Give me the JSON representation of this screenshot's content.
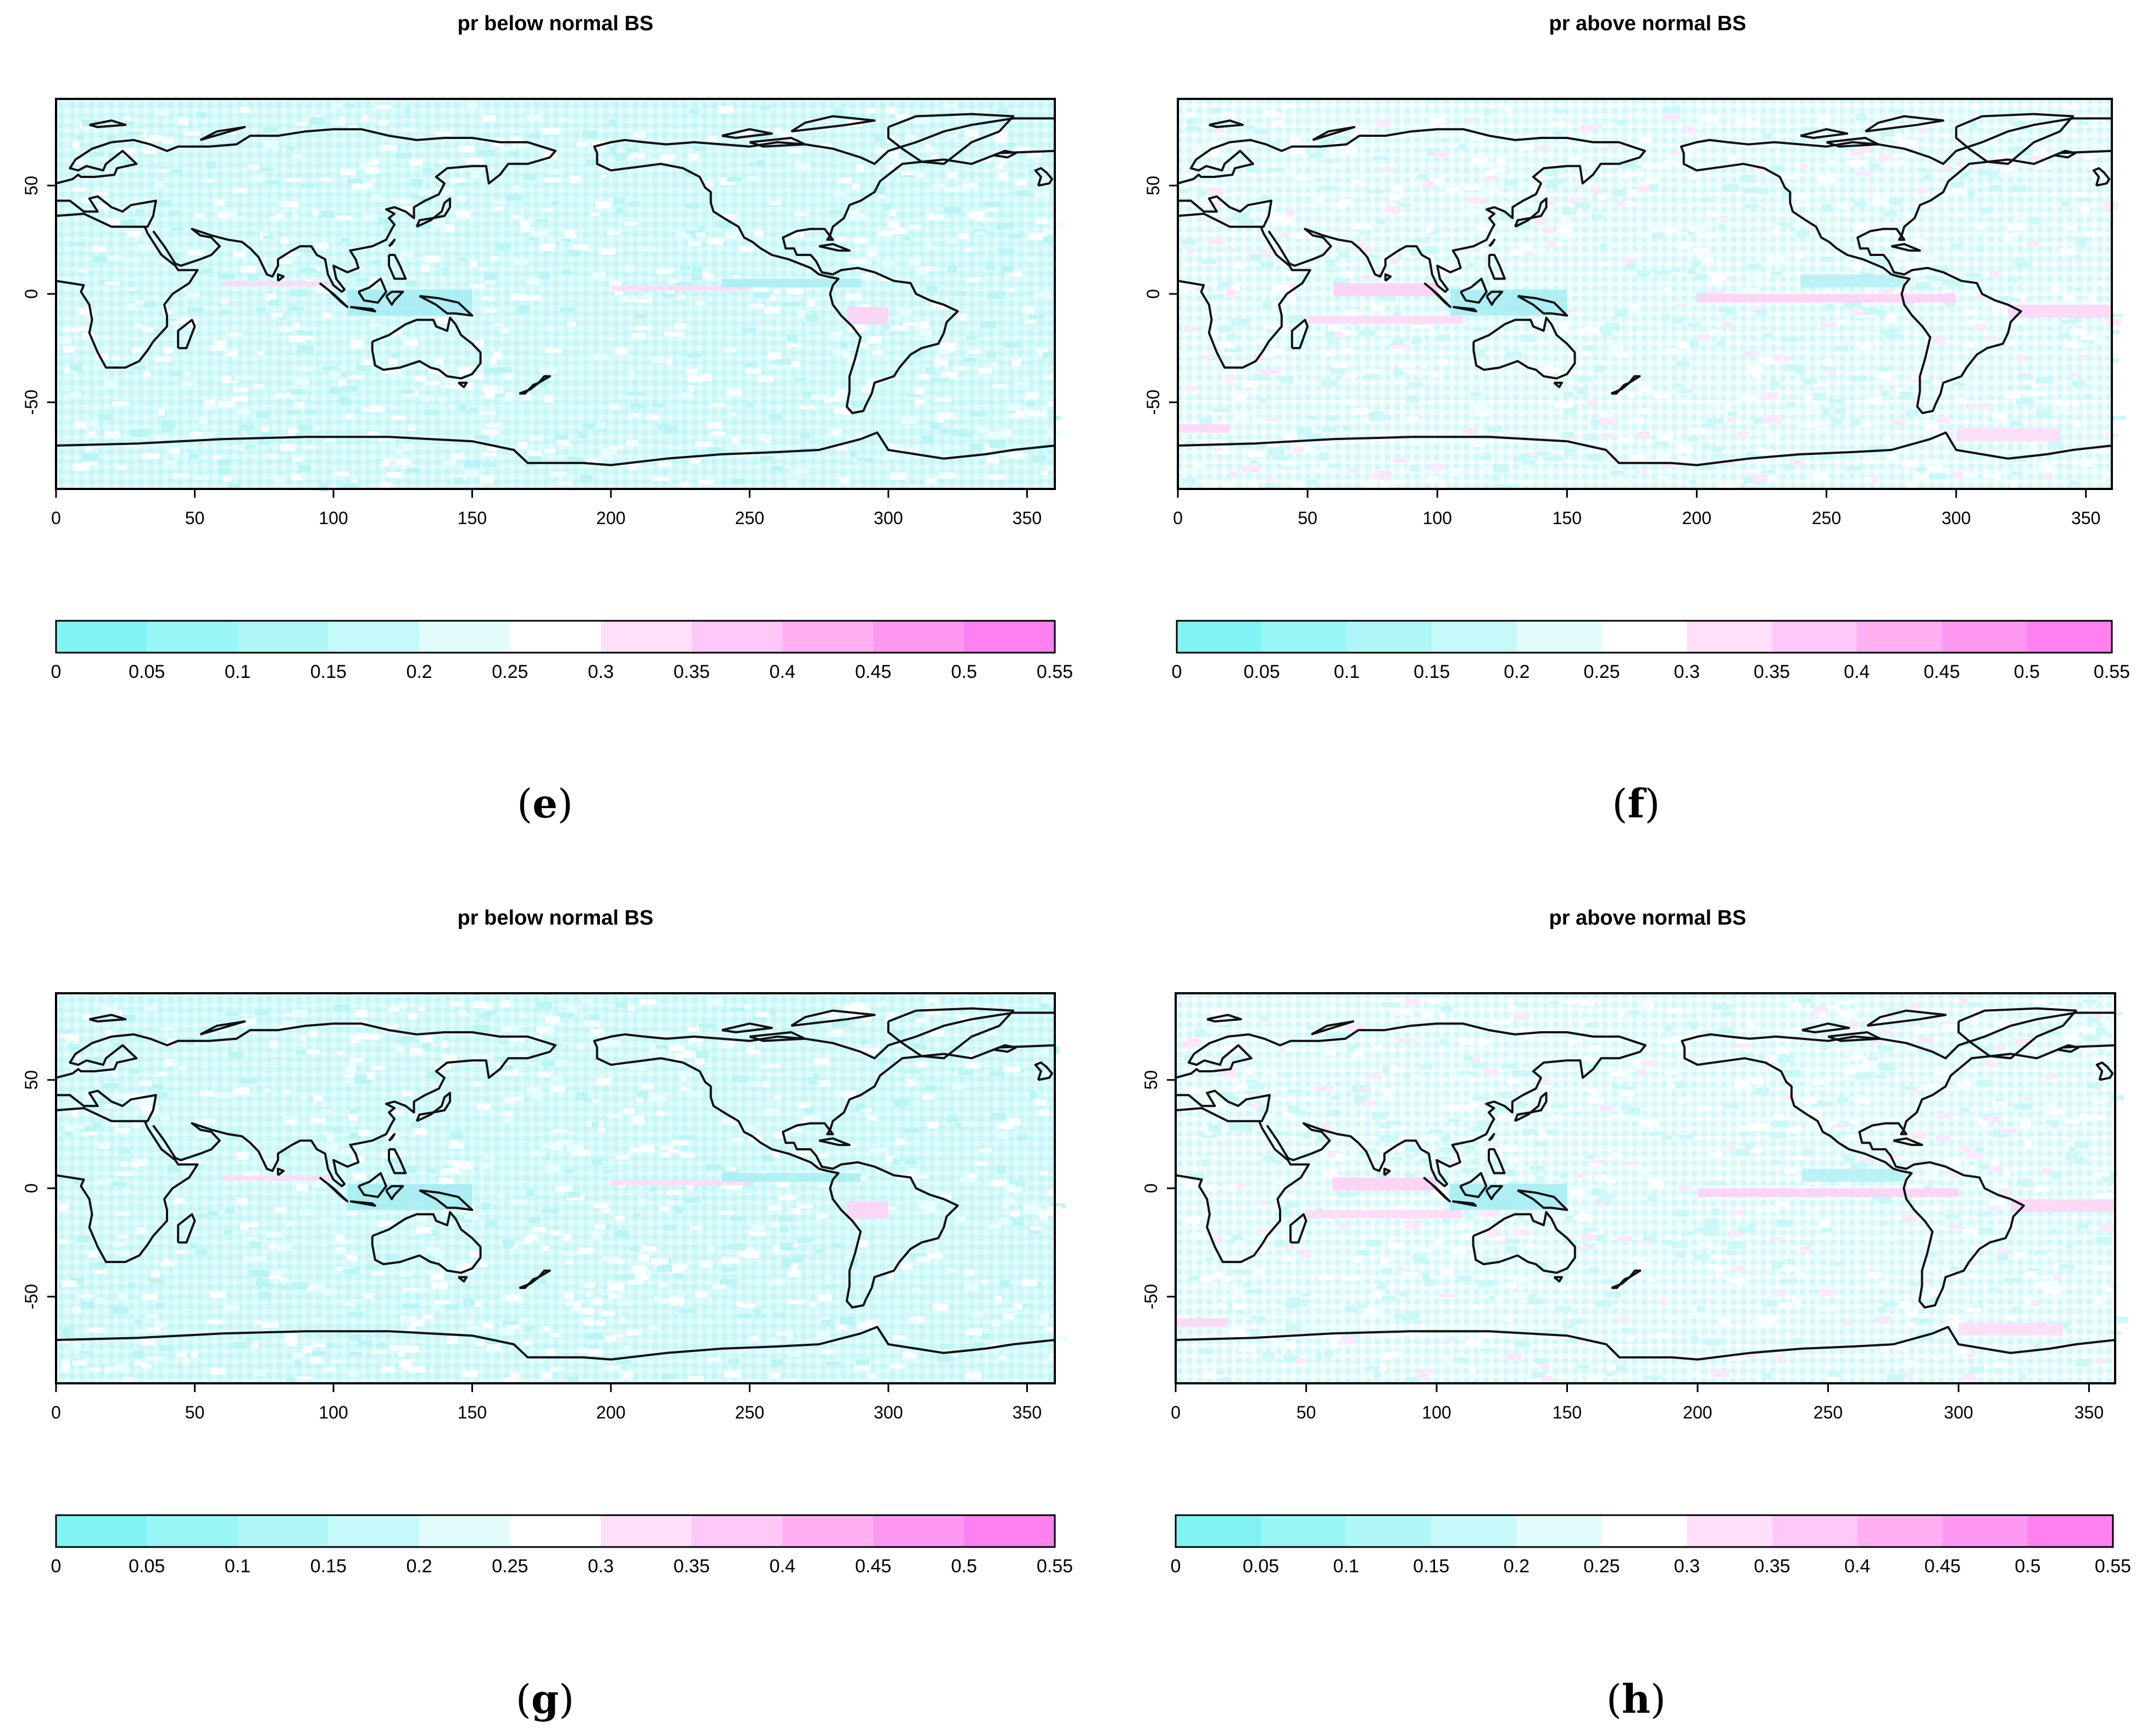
{
  "palette": {
    "cyan_strong": "#80f5f5",
    "cyan_light": "#dafafa",
    "white": "#ffffff",
    "pink_light": "#ffd6f8",
    "pink_strong": "#ff80f0",
    "coastline": "#111111"
  },
  "colorbar": {
    "labels": [
      "0",
      "0.05",
      "0.1",
      "0.15",
      "0.2",
      "0.25",
      "0.3",
      "0.35",
      "0.4",
      "0.45",
      "0.5",
      "0.55"
    ],
    "colors": [
      "#80f4f4",
      "#99f7f7",
      "#b0f8f8",
      "#c6fafa",
      "#e3fcfc",
      "#ffffff",
      "#ffe0fa",
      "#ffc8f8",
      "#ffb0f4",
      "#ff98f2",
      "#ff80f0"
    ]
  },
  "axes": {
    "x_ticks": [
      "0",
      "50",
      "100",
      "150",
      "200",
      "250",
      "300",
      "350"
    ],
    "x_values": [
      0,
      50,
      100,
      150,
      200,
      250,
      300,
      350
    ],
    "y_ticks": [
      "50",
      "0",
      "-50"
    ],
    "y_values": [
      50,
      0,
      -50
    ],
    "x_range": [
      0,
      360
    ],
    "y_range": [
      -90,
      90
    ]
  },
  "panels": [
    {
      "title": "pr below normal BS",
      "letter": "e",
      "field": "cyan"
    },
    {
      "title": "pr above normal BS",
      "letter": "f",
      "field": "mixed"
    },
    {
      "title": "pr below normal BS",
      "letter": "g",
      "field": "cyan"
    },
    {
      "title": "pr above normal BS",
      "letter": "h",
      "field": "mixed"
    }
  ]
}
